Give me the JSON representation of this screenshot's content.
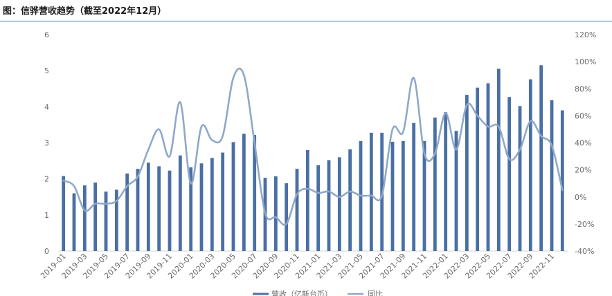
{
  "title": "图：信骅营收趋势（截至2022年12月）",
  "colors": {
    "bar": "#4a6fa5",
    "line": "#8fa8c8",
    "axis": "#d0d0d0",
    "text": "#6b6b6b",
    "rule": "#4a72b8"
  },
  "chart_data": {
    "type": "bar",
    "title": "图：信骅营收趋势（截至2022年12月）",
    "x": [
      "2019-01",
      "2019-02",
      "2019-03",
      "2019-04",
      "2019-05",
      "2019-06",
      "2019-07",
      "2019-08",
      "2019-09",
      "2019-10",
      "2019-11",
      "2019-12",
      "2020-01",
      "2020-02",
      "2020-03",
      "2020-04",
      "2020-05",
      "2020-06",
      "2020-07",
      "2020-08",
      "2020-09",
      "2020-10",
      "2020-11",
      "2020-12",
      "2021-01",
      "2021-02",
      "2021-03",
      "2021-04",
      "2021-05",
      "2021-06",
      "2021-07",
      "2021-08",
      "2021-09",
      "2021-10",
      "2021-11",
      "2021-12",
      "2022-01",
      "2022-02",
      "2022-03",
      "2022-04",
      "2022-05",
      "2022-06",
      "2022-07",
      "2022-08",
      "2022-09",
      "2022-10",
      "2022-11",
      "2022-12"
    ],
    "x_tick_labels": [
      "2019-01",
      "2019-03",
      "2019-05",
      "2019-07",
      "2019-09",
      "2019-11",
      "2020-01",
      "2020-03",
      "2020-05",
      "2020-07",
      "2020-09",
      "2020-11",
      "2021-01",
      "2021-03",
      "2021-05",
      "2021-07",
      "2021-09",
      "2021-11",
      "2022-01",
      "2022-03",
      "2022-05",
      "2022-07",
      "2022-09",
      "2022-11"
    ],
    "y_left_ticks": [
      "0",
      "1",
      "2",
      "3",
      "4",
      "5",
      "6"
    ],
    "y_right_ticks": [
      "-40%",
      "-20%",
      "0%",
      "20%",
      "40%",
      "60%",
      "80%",
      "100%",
      "120%"
    ],
    "ylim_left": [
      0,
      6
    ],
    "ylim_right": [
      -40,
      120
    ],
    "series": [
      {
        "name": "营收（亿新台币）",
        "type": "bar",
        "axis": "left",
        "values": [
          2.08,
          1.6,
          1.82,
          1.9,
          1.65,
          1.7,
          2.15,
          2.28,
          2.45,
          2.35,
          2.23,
          2.65,
          2.32,
          2.43,
          2.58,
          2.73,
          3.02,
          3.25,
          3.22,
          2.03,
          2.07,
          1.88,
          2.28,
          2.8,
          2.38,
          2.52,
          2.6,
          2.82,
          3.05,
          3.28,
          3.28,
          3.03,
          3.05,
          3.55,
          3.05,
          3.7,
          3.85,
          3.33,
          4.33,
          4.53,
          4.65,
          5.05,
          4.27,
          4.02,
          4.76,
          5.15,
          4.18,
          3.9
        ]
      },
      {
        "name": "同比",
        "type": "line",
        "axis": "right",
        "values": [
          12,
          8,
          -10,
          -5,
          -5,
          -3,
          8,
          15,
          35,
          50,
          30,
          70,
          10,
          52,
          42,
          45,
          88,
          90,
          40,
          -12,
          -15,
          -20,
          2,
          6,
          3,
          4,
          0,
          4,
          1,
          1,
          1,
          50,
          48,
          88,
          32,
          32,
          62,
          35,
          68,
          60,
          52,
          52,
          28,
          35,
          56,
          45,
          38,
          5
        ]
      }
    ],
    "legend": {
      "position": "bottom-center"
    },
    "grid": false
  }
}
